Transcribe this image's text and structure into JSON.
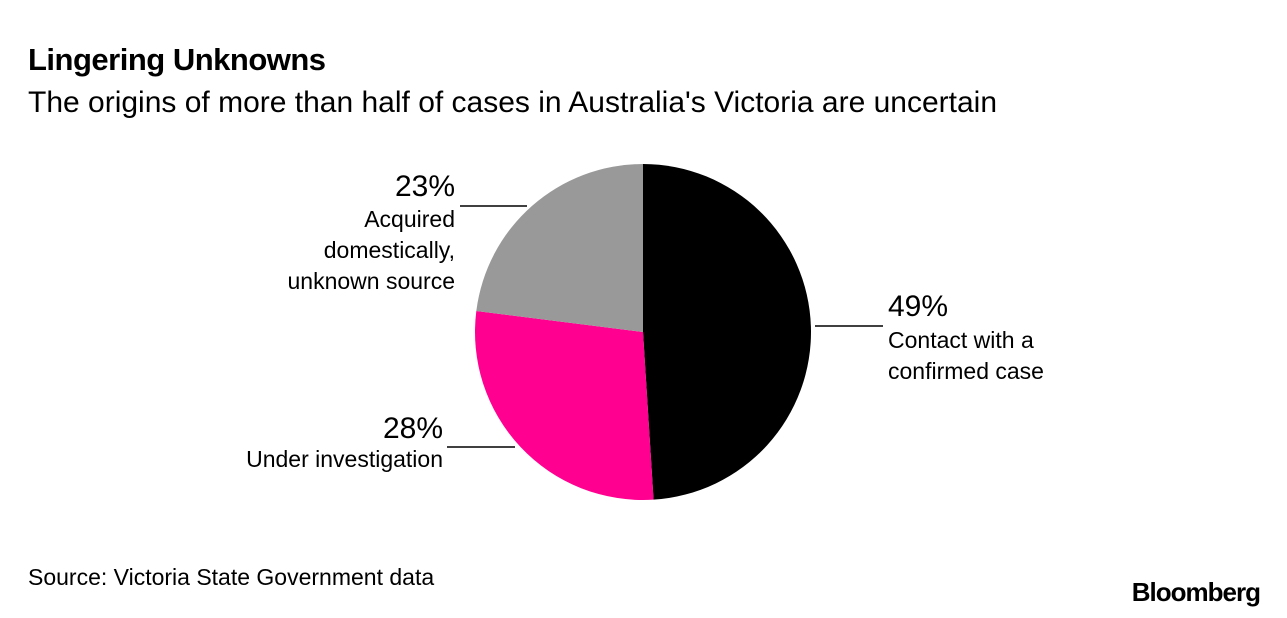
{
  "chart_data": {
    "type": "pie",
    "title": "Lingering Unknowns",
    "subtitle": "The origins of more than half of cases in Australia's Victoria are uncertain",
    "categories": [
      "Contact with a confirmed case",
      "Under investigation",
      "Acquired domestically, unknown source"
    ],
    "values": [
      49,
      28,
      23
    ],
    "value_labels": [
      "49%",
      "28%",
      "23%"
    ],
    "colors": [
      "#000000",
      "#ff0090",
      "#999999"
    ],
    "source": "Source: Victoria State Government data",
    "logo": "Bloomberg"
  }
}
